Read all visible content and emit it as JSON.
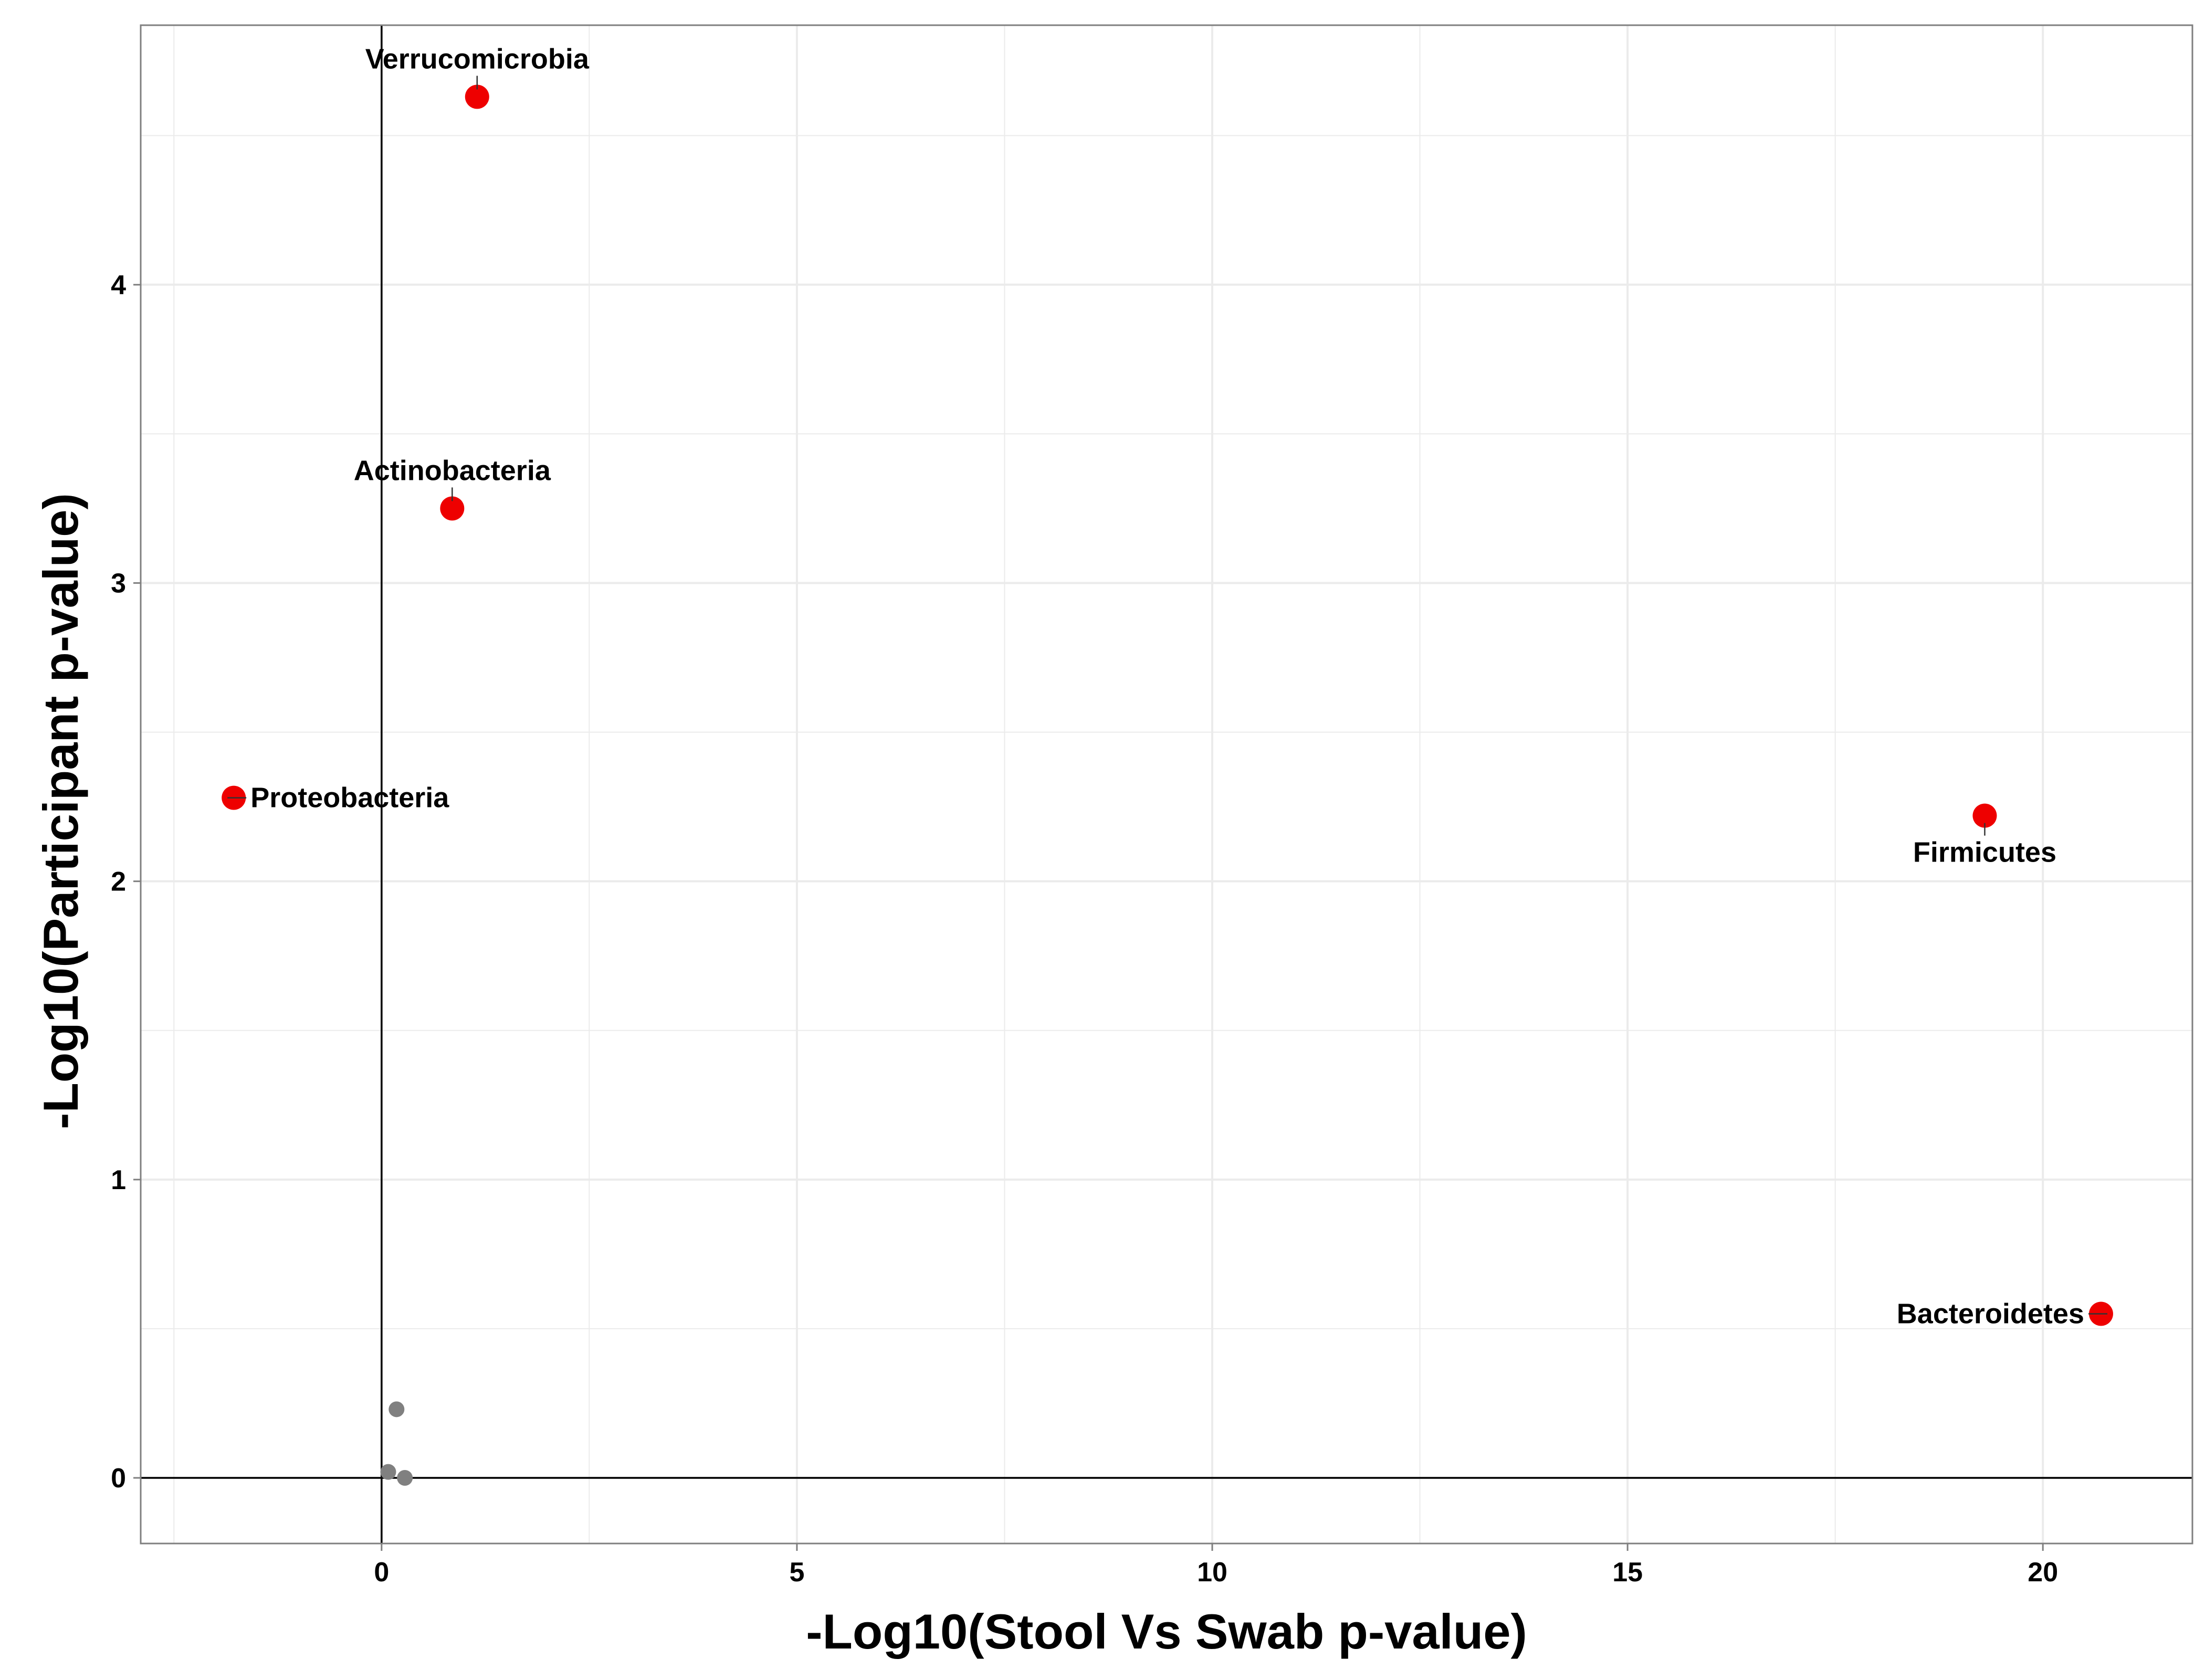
{
  "chart_data": {
    "type": "scatter",
    "title": "",
    "xlabel": "-Log10(Stool Vs Swab p-value)",
    "ylabel": "-Log10(Participant p-value)",
    "xlim": [
      -2.9,
      21.8
    ],
    "ylim": [
      -0.22,
      4.87
    ],
    "x_ticks": [
      0,
      5,
      10,
      15,
      20
    ],
    "y_ticks": [
      0,
      1,
      2,
      3,
      4
    ],
    "x_tick_labels": [
      "0",
      "5",
      "10",
      "15",
      "20"
    ],
    "y_tick_labels": [
      "0",
      "1",
      "2",
      "3",
      "4"
    ],
    "reference_lines": {
      "x": 0,
      "y": 0
    },
    "grid": true,
    "colors": {
      "significant": "#ee0000",
      "nonsignificant": "#808080",
      "grid": "#ebebeb",
      "panel_border": "#7f7f7f"
    },
    "points": [
      {
        "label": "Verrucomicrobia",
        "x": 1.15,
        "y": 4.63,
        "significant": true,
        "label_side": "above"
      },
      {
        "label": "Actinobacteria",
        "x": 0.85,
        "y": 3.25,
        "significant": true,
        "label_side": "above"
      },
      {
        "label": "Proteobacteria",
        "x": -1.78,
        "y": 2.28,
        "significant": true,
        "label_side": "right"
      },
      {
        "label": "Firmicutes",
        "x": 19.3,
        "y": 2.22,
        "significant": true,
        "label_side": "below"
      },
      {
        "label": "Bacteroidetes",
        "x": 20.7,
        "y": 0.55,
        "significant": true,
        "label_side": "left"
      },
      {
        "label": "",
        "x": 0.18,
        "y": 0.23,
        "significant": false
      },
      {
        "label": "",
        "x": 0.08,
        "y": 0.02,
        "significant": false
      },
      {
        "label": "",
        "x": 0.28,
        "y": 0.0,
        "significant": false
      }
    ]
  }
}
